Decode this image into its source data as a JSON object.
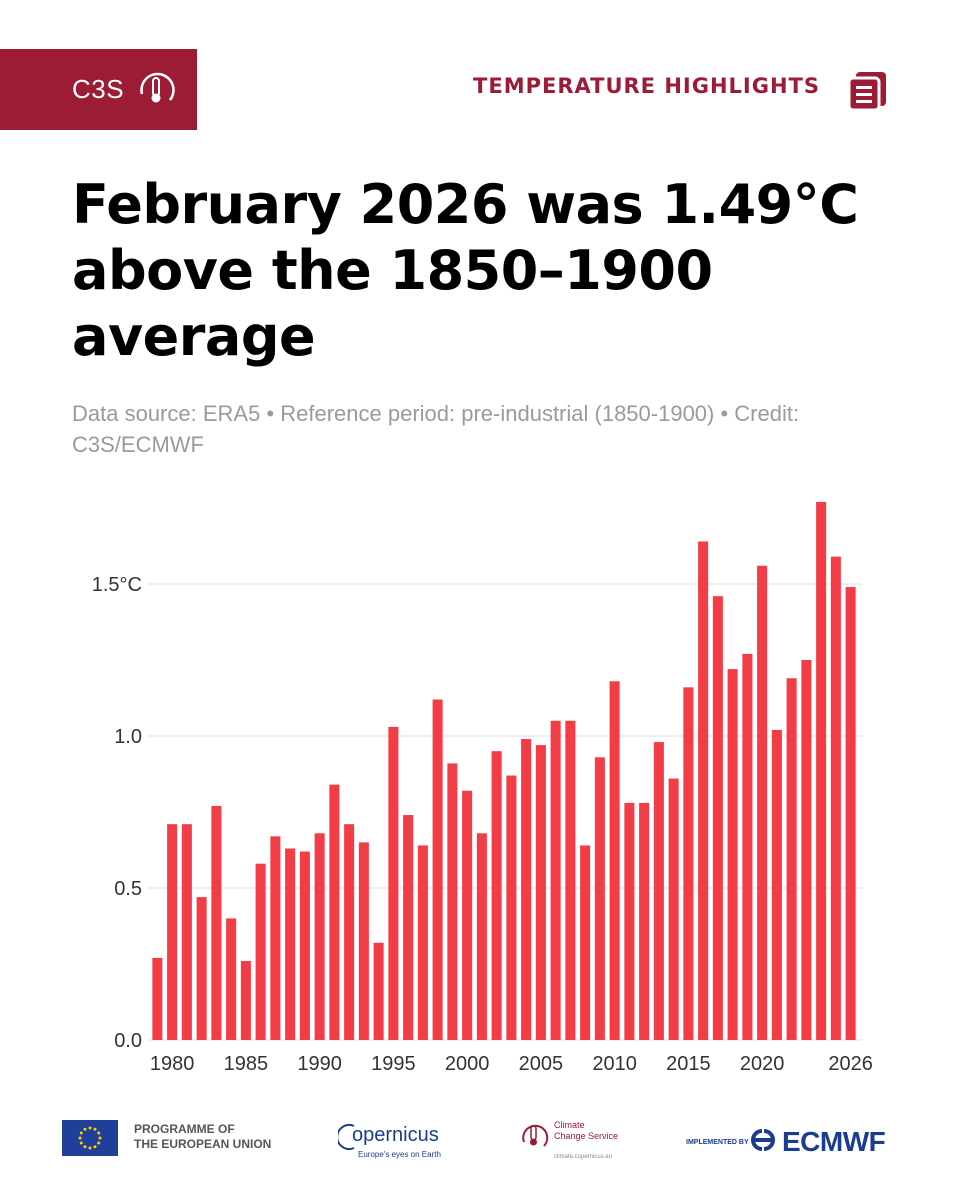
{
  "header": {
    "brand": "C3S",
    "section_label": "TEMPERATURE HIGHLIGHTS",
    "brand_color": "#9c1c35"
  },
  "title": "February 2026 was 1.49°C above the 1850–1900 average",
  "subtitle": "Data source: ERA5 • Reference period: pre-industrial (1850-1900) • Credit: C3S/ECMWF",
  "chart_data": {
    "type": "bar",
    "title": "February 2026 was 1.49°C above the 1850–1900 average",
    "xlabel": "",
    "ylabel": "",
    "ylim": [
      0,
      1.78
    ],
    "grid": true,
    "bar_color": "#f23d46",
    "categories": [
      1979,
      1980,
      1981,
      1982,
      1983,
      1984,
      1985,
      1986,
      1987,
      1988,
      1989,
      1990,
      1991,
      1992,
      1993,
      1994,
      1995,
      1996,
      1997,
      1998,
      1999,
      2000,
      2001,
      2002,
      2003,
      2004,
      2005,
      2006,
      2007,
      2008,
      2009,
      2010,
      2011,
      2012,
      2013,
      2014,
      2015,
      2016,
      2017,
      2018,
      2019,
      2020,
      2021,
      2022,
      2023,
      2024,
      2025,
      2026
    ],
    "values": [
      0.27,
      0.71,
      0.71,
      0.47,
      0.77,
      0.4,
      0.26,
      0.58,
      0.67,
      0.63,
      0.62,
      0.68,
      0.84,
      0.71,
      0.65,
      0.32,
      1.03,
      0.74,
      0.64,
      1.12,
      0.91,
      0.82,
      0.68,
      0.95,
      0.87,
      0.99,
      0.97,
      1.05,
      1.05,
      0.64,
      0.93,
      1.18,
      0.78,
      0.78,
      0.98,
      0.86,
      1.16,
      1.64,
      1.46,
      1.22,
      1.27,
      1.56,
      1.02,
      1.19,
      1.25,
      1.77,
      1.59,
      1.49
    ],
    "y_ticks": [
      {
        "value": 0.0,
        "label": "0.0"
      },
      {
        "value": 0.5,
        "label": "0.5"
      },
      {
        "value": 1.0,
        "label": "1.0"
      },
      {
        "value": 1.5,
        "label": "1.5°C"
      }
    ],
    "x_ticks": [
      {
        "value": 1980,
        "label": "1980"
      },
      {
        "value": 1985,
        "label": "1985"
      },
      {
        "value": 1990,
        "label": "1990"
      },
      {
        "value": 1995,
        "label": "1995"
      },
      {
        "value": 2000,
        "label": "2000"
      },
      {
        "value": 2005,
        "label": "2005"
      },
      {
        "value": 2010,
        "label": "2010"
      },
      {
        "value": 2015,
        "label": "2015"
      },
      {
        "value": 2020,
        "label": "2020"
      },
      {
        "value": 2026,
        "label": "2026"
      }
    ]
  },
  "footer": {
    "eu_line1": "PROGRAMME OF",
    "eu_line2": "THE EUROPEAN UNION",
    "copernicus": "opernicus",
    "copernicus_tagline": "Europe's eyes on Earth",
    "ccs_line1": "Climate",
    "ccs_line2": "Change Service",
    "ccs_url": "climate.copernicus.eu",
    "implemented_by": "IMPLEMENTED BY",
    "ecmwf": "ECMWF"
  }
}
